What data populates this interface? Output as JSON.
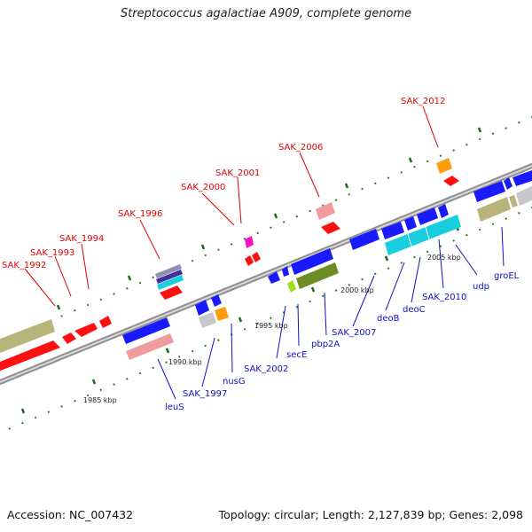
{
  "title": "Streptococcus agalactiae A909, complete genome",
  "footer": {
    "accession": "Accession: NC_007432",
    "summary": "Topology: circular; Length: 2,127,839 bp; Genes: 2,098"
  },
  "colors": {
    "red": "#ff1010",
    "blue": "#1a1aff",
    "olive": "#b8b47a",
    "darkgreen": "#6e8c25",
    "pink": "#f09c9c",
    "cyan": "#18cfe0",
    "orange": "#ff9c10",
    "silver": "#c8c8cc",
    "label_red": "#e00000",
    "label_blue": "#1010c8"
  },
  "scale": {
    "ticks": [
      "1985 kbp",
      "1990 kbp",
      "1995 kbp",
      "2000 kbp",
      "2005 kbp"
    ]
  },
  "genes_top": [
    "SAK_1992",
    "SAK_1993",
    "SAK_1994",
    "SAK_1996",
    "SAK_2000",
    "SAK_2001",
    "SAK_2006",
    "SAK_2012"
  ],
  "genes_bottom": [
    "leuS",
    "SAK_1997",
    "nusG",
    "SAK_2002",
    "secE",
    "pbp2A",
    "SAK_2007",
    "deoB",
    "deoC",
    "SAK_2010",
    "udp",
    "groEL"
  ]
}
